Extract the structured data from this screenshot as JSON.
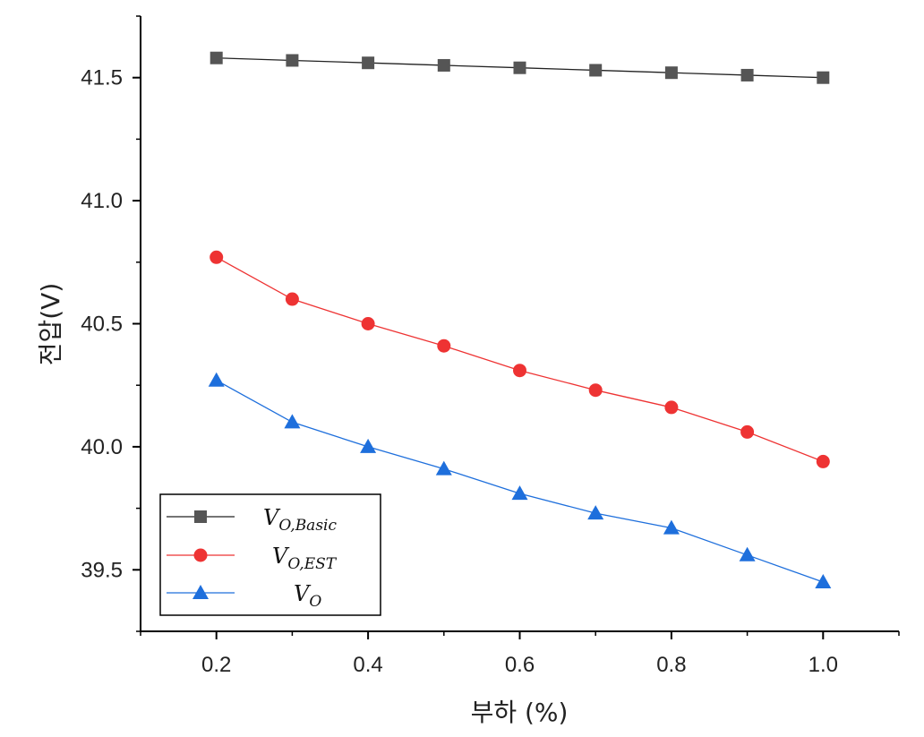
{
  "chart_data": {
    "type": "line",
    "xlabel": "부하 (%)",
    "ylabel": "전압(V)",
    "xlim": [
      0.1,
      1.1
    ],
    "ylim": [
      39.25,
      41.75
    ],
    "x_ticks": [
      "0.2",
      "0.4",
      "0.6",
      "0.8",
      "1.0"
    ],
    "y_ticks": [
      "39.5",
      "40.0",
      "40.5",
      "41.0",
      "41.5"
    ],
    "x": [
      0.2,
      0.3,
      0.4,
      0.5,
      0.6,
      0.7,
      0.8,
      0.9,
      1.0
    ],
    "grid": false,
    "legend_position": "bottom-left",
    "series": [
      {
        "name_main": "V",
        "name_sub": "O,Basic",
        "color": "#555555",
        "line_color": "#222222",
        "marker": "square",
        "values": [
          41.58,
          41.57,
          41.56,
          41.55,
          41.54,
          41.53,
          41.52,
          41.51,
          41.5
        ]
      },
      {
        "name_main": "V",
        "name_sub": "O,EST",
        "color": "#ee3333",
        "line_color": "#ee3333",
        "marker": "circle",
        "values": [
          40.77,
          40.6,
          40.5,
          40.41,
          40.31,
          40.23,
          40.16,
          40.06,
          39.94
        ]
      },
      {
        "name_main": "V",
        "name_sub": "O",
        "color": "#1e6fdc",
        "line_color": "#1e6fdc",
        "marker": "triangle",
        "values": [
          40.27,
          40.1,
          40.0,
          39.91,
          39.81,
          39.73,
          39.67,
          39.56,
          39.45
        ]
      }
    ]
  }
}
